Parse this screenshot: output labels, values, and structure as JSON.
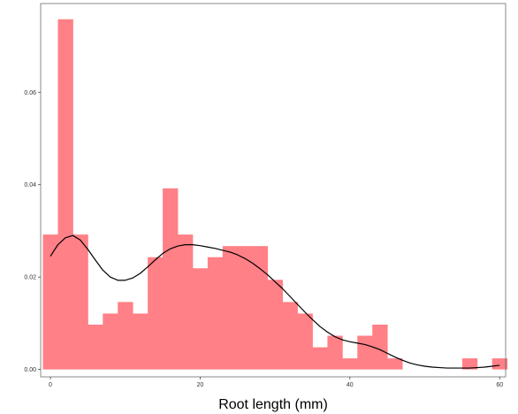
{
  "chart_data": {
    "type": "bar",
    "title": "",
    "xlabel": "Root length (mm)",
    "ylabel": "",
    "xlim": [
      -1.3,
      60.8
    ],
    "ylim": [
      -0.0016,
      0.0792
    ],
    "grid": false,
    "x_ticks": [
      0,
      20,
      40,
      60
    ],
    "y_ticks": [
      0.0,
      0.02,
      0.04,
      0.06
    ],
    "y_tick_labels": [
      "0.00",
      "0.02",
      "0.04",
      "0.06"
    ],
    "bins": {
      "width": 2,
      "starts": [
        -1,
        1,
        3,
        5,
        7,
        9,
        11,
        13,
        15,
        17,
        19,
        21,
        23,
        25,
        27,
        29,
        31,
        33,
        35,
        37,
        39,
        41,
        43,
        45,
        47,
        49,
        51,
        53,
        55,
        57,
        59
      ],
      "densities": [
        0.0292,
        0.0758,
        0.0292,
        0.0097,
        0.0121,
        0.0146,
        0.0121,
        0.0243,
        0.0392,
        0.0292,
        0.0219,
        0.0243,
        0.0267,
        0.0267,
        0.0267,
        0.0194,
        0.0146,
        0.0121,
        0.0048,
        0.0073,
        0.0024,
        0.0073,
        0.0097,
        0.0024,
        0,
        0,
        0,
        0,
        0.0024,
        0,
        0.0024
      ]
    },
    "series": [
      {
        "type": "line",
        "x": [
          0,
          1,
          2,
          3,
          4,
          5,
          6,
          7,
          8,
          9,
          10,
          11,
          12,
          13,
          14,
          15,
          16,
          17,
          18,
          19,
          20,
          21,
          22,
          23,
          24,
          25,
          26,
          27,
          28,
          29,
          30,
          31,
          32,
          33,
          34,
          35,
          36,
          37,
          38,
          39,
          40,
          41,
          42,
          43,
          44,
          45,
          46,
          47,
          48,
          49,
          50,
          51,
          52,
          53,
          54,
          55,
          56,
          57,
          58,
          59,
          60
        ],
        "y": [
          0.0245,
          0.027,
          0.0285,
          0.029,
          0.028,
          0.026,
          0.0237,
          0.0215,
          0.02,
          0.0193,
          0.0193,
          0.0198,
          0.0208,
          0.0222,
          0.0237,
          0.0251,
          0.0261,
          0.0267,
          0.027,
          0.027,
          0.0268,
          0.0265,
          0.0262,
          0.0258,
          0.0254,
          0.0248,
          0.024,
          0.023,
          0.0218,
          0.0205,
          0.019,
          0.0175,
          0.0158,
          0.0141,
          0.0124,
          0.0108,
          0.0093,
          0.0081,
          0.0071,
          0.0064,
          0.006,
          0.0057,
          0.0054,
          0.0049,
          0.0043,
          0.0035,
          0.0027,
          0.002,
          0.0014,
          0.001,
          0.0007,
          0.0005,
          0.0004,
          0.0003,
          0.0003,
          0.0003,
          0.0003,
          0.0004,
          0.0005,
          0.0007,
          0.0009
        ]
      }
    ],
    "colors": {
      "bars": "#ff8087",
      "curve": "#000000",
      "frame": "#595959",
      "ticks": "#333333",
      "background": "#ffffff"
    }
  }
}
